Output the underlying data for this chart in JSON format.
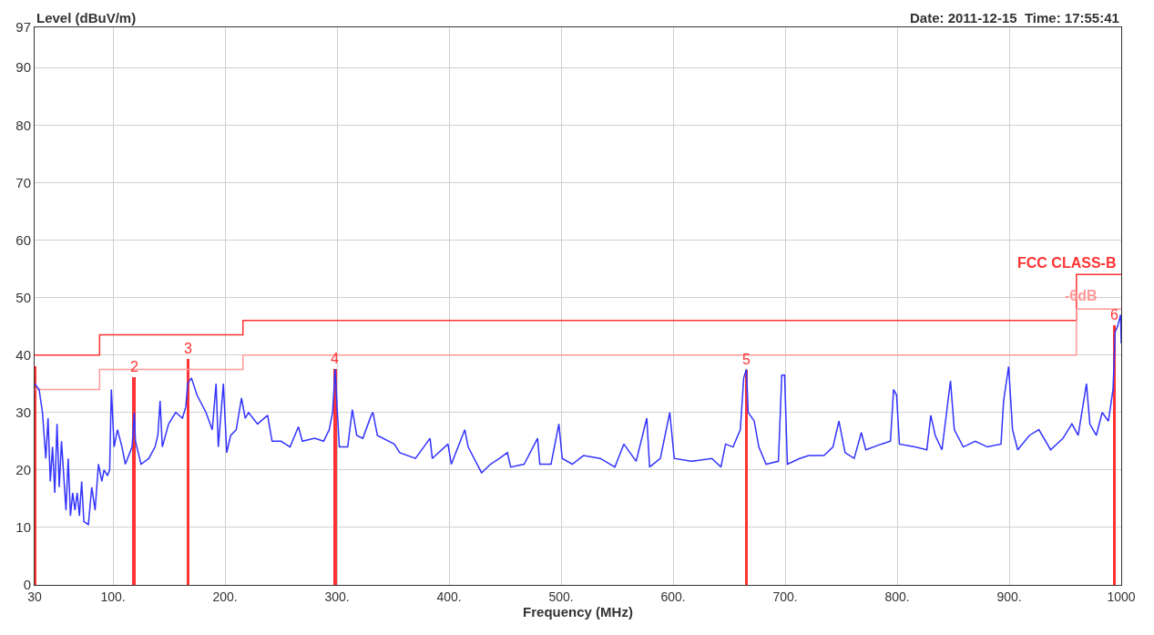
{
  "chart_data": {
    "type": "line",
    "xlabel": "Frequency (MHz)",
    "ylabel": "Level (dBuV/m)",
    "annotations": [
      "Date: 2011-12-15  Time: 17:55:41",
      {
        "text": "2",
        "x": 118.7,
        "y": 36.2
      },
      {
        "text": "3",
        "x": 166.8,
        "y": 39.3
      },
      {
        "text": "4",
        "x": 298.3,
        "y": 37.6
      },
      {
        "text": "5",
        "x": 665.4,
        "y": 37.4
      },
      {
        "text": "6",
        "x": 994,
        "y": 45.1
      }
    ],
    "xlim": [
      30,
      1000
    ],
    "ylim": [
      0,
      97
    ],
    "xticks": [
      {
        "value": 30,
        "label": "30"
      },
      {
        "value": 100,
        "label": "100."
      },
      {
        "value": 200,
        "label": "200."
      },
      {
        "value": 300,
        "label": "300."
      },
      {
        "value": 400,
        "label": "400."
      },
      {
        "value": 500,
        "label": "500."
      },
      {
        "value": 600,
        "label": "600."
      },
      {
        "value": 700,
        "label": "700."
      },
      {
        "value": 800,
        "label": "800."
      },
      {
        "value": 900,
        "label": "900."
      },
      {
        "value": 1000,
        "label": "1000"
      }
    ],
    "yticks": [
      0,
      10,
      20,
      30,
      40,
      50,
      60,
      70,
      80,
      90,
      97
    ],
    "grid": true,
    "legend": false,
    "series": [
      {
        "name": "FCC CLASS-B",
        "type": "step",
        "color": "#ff3333",
        "x": [
          30,
          88,
          216,
          960,
          1000
        ],
        "values": [
          40,
          43.5,
          46,
          54,
          54
        ]
      },
      {
        "name": "-6dB",
        "type": "step",
        "color": "#ff9999",
        "x": [
          30,
          88,
          216,
          960,
          1000
        ],
        "values": [
          34,
          37.5,
          40,
          48,
          48
        ]
      },
      {
        "color": "#3333ff",
        "x": [
          30,
          34,
          37,
          40,
          42,
          44,
          46,
          48,
          50,
          52,
          54,
          56,
          58,
          60,
          62,
          64,
          66,
          68,
          70,
          72,
          74,
          78,
          81,
          84,
          87,
          90,
          92,
          95,
          97,
          98.5,
          101,
          104,
          108,
          111,
          117,
          119,
          120,
          125,
          132,
          137.5,
          140,
          142,
          144,
          149.6,
          156,
          162,
          165,
          166.6,
          170,
          175,
          183,
          188.6,
          192,
          194,
          198.5,
          201.5,
          205,
          210,
          214.7,
          218,
          221,
          229,
          238,
          242,
          250,
          258,
          265.5,
          269,
          280,
          288,
          293,
          296,
          298.3,
          300,
          302,
          309.5,
          313.6,
          317.6,
          323,
          330.5,
          332,
          336,
          351,
          356,
          370,
          383,
          385,
          399,
          402,
          414,
          417,
          429,
          437,
          445,
          452,
          455,
          467,
          479,
          481,
          491,
          498,
          501,
          510,
          520,
          535,
          548,
          556,
          567,
          576.5,
          579,
          588.6,
          597,
          601,
          616,
          634.6,
          642.7,
          646.8,
          653.5,
          660,
          663,
          665.4,
          667,
          672.4,
          676.5,
          683,
          694,
          697,
          699.5,
          702,
          713,
          721,
          734.6,
          742.7,
          748,
          753.5,
          761.6,
          768,
          772,
          786,
          794,
          796.8,
          799.5,
          802,
          815.7,
          826.5,
          830,
          834,
          840,
          847.6,
          851,
          859,
          869.7,
          880.5,
          892.7,
          895,
          899.5,
          903,
          907.6,
          918,
          926.5,
          937,
          948,
          956,
          961.6,
          969,
          972,
          977.8,
          983,
          988.6,
          992.7,
          994.6,
          996.8,
          999.5,
          1000
        ],
        "values": [
          35,
          34,
          30,
          22,
          29,
          18,
          24,
          16,
          28,
          17,
          25,
          19,
          13,
          22,
          12,
          16,
          13,
          16,
          12,
          18,
          11,
          10.5,
          17,
          13,
          21,
          18,
          20,
          19,
          20,
          34,
          24,
          27,
          24,
          21,
          24,
          30,
          25,
          21,
          22,
          24,
          26,
          32,
          24,
          28,
          30,
          29,
          31,
          35,
          36,
          33,
          30,
          27,
          35,
          24,
          35,
          23,
          26,
          27,
          32.5,
          29,
          30,
          28,
          29.5,
          25,
          25,
          24,
          27.5,
          25,
          25.5,
          25,
          27,
          30,
          37.5,
          31,
          24,
          24,
          30.5,
          26,
          25.5,
          29.5,
          30,
          26,
          24.5,
          23,
          22,
          25.5,
          22,
          24.5,
          21,
          27,
          24,
          19.5,
          21,
          22,
          23,
          20.5,
          21,
          25.5,
          21,
          21,
          28,
          22,
          21,
          22.5,
          22,
          20.5,
          24.5,
          21.5,
          29,
          20.5,
          22,
          30,
          22,
          21.5,
          22,
          20.5,
          24.5,
          24,
          27,
          36,
          37.5,
          30,
          28.5,
          24,
          21,
          21.5,
          36.5,
          36.5,
          21,
          22,
          22.5,
          22.5,
          24,
          28.5,
          23,
          22,
          26.5,
          23.5,
          24.5,
          25,
          34,
          33,
          24.5,
          24,
          23.5,
          29.5,
          26,
          23.5,
          35.5,
          27,
          24,
          25,
          24,
          24.5,
          32,
          38,
          27,
          23.5,
          26,
          27,
          23.5,
          25.5,
          28,
          26,
          35,
          28,
          26,
          30,
          28.5,
          34,
          44,
          45,
          47,
          42
        ]
      },
      {
        "type": "bar",
        "color": "#ff3333",
        "x": [
          30,
          118.7,
          166.8,
          298.3,
          665.4,
          994
        ],
        "values": [
          38,
          36.2,
          39.3,
          37.6,
          37.4,
          45.1
        ]
      }
    ]
  }
}
